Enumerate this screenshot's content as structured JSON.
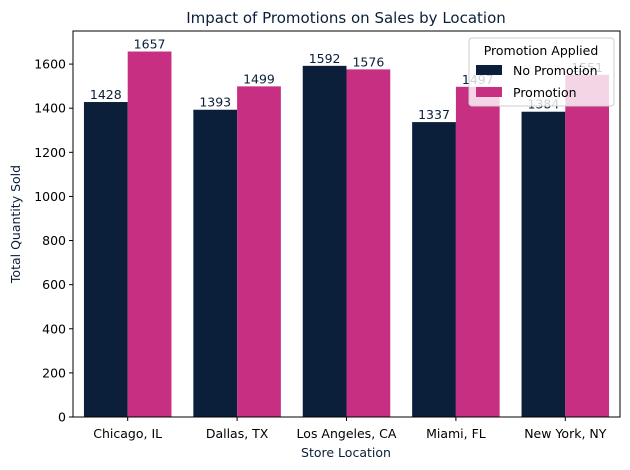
{
  "chart_data": {
    "type": "bar",
    "title": "Impact of Promotions on Sales by Location",
    "xlabel": "Store Location",
    "ylabel": "Total Quantity Sold",
    "categories": [
      "Chicago, IL",
      "Dallas, TX",
      "Los Angeles, CA",
      "Miami, FL",
      "New York, NY"
    ],
    "series": [
      {
        "name": "No Promotion",
        "values": [
          1428,
          1393,
          1592,
          1337,
          1384
        ],
        "color": "#0b1f3a"
      },
      {
        "name": "Promotion",
        "values": [
          1657,
          1499,
          1576,
          1497,
          1551
        ],
        "color": "#c73082"
      }
    ],
    "ylim": [
      0,
      1750
    ],
    "yticks": [
      0,
      200,
      400,
      600,
      800,
      1000,
      1200,
      1400,
      1600
    ],
    "legend": {
      "title": "Promotion Applied",
      "position": "top-right"
    },
    "grid": false
  }
}
